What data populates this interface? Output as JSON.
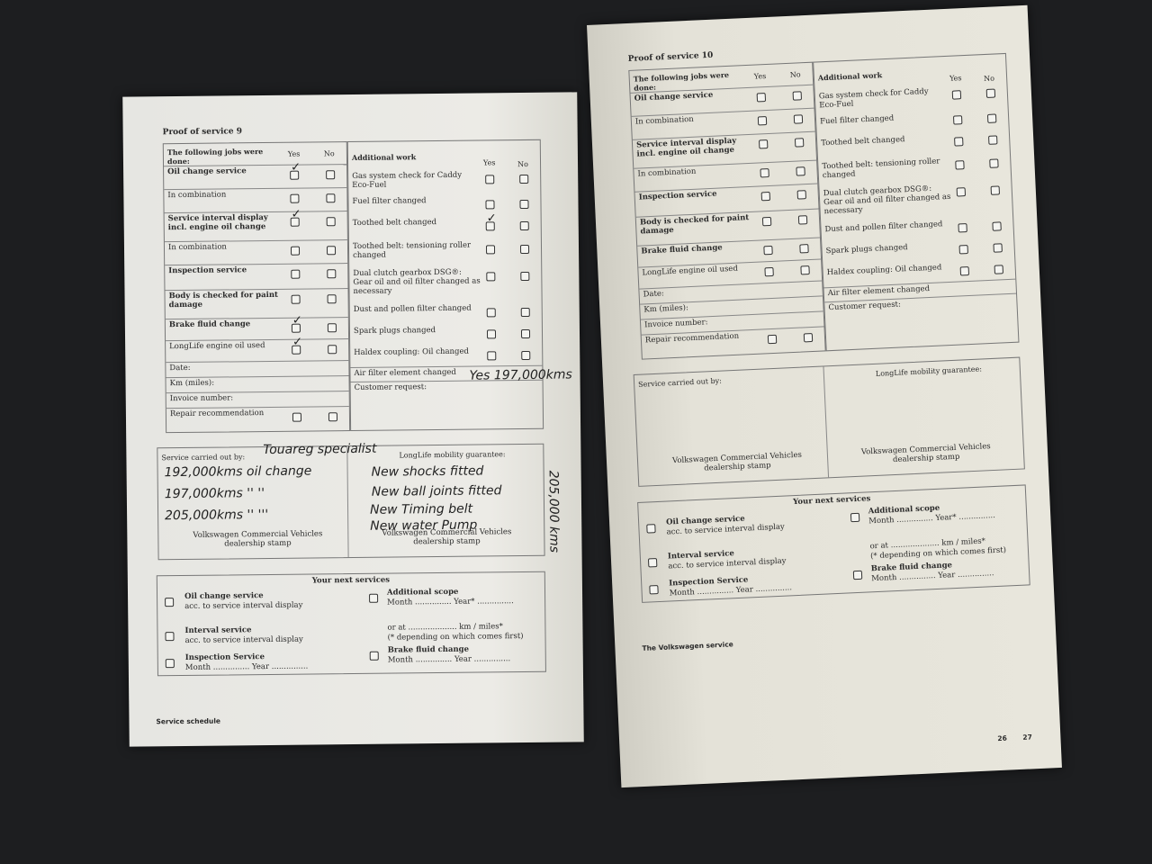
{
  "left": {
    "title": "Proof of service 9",
    "jobs_header": "The following jobs were done:",
    "yes": "Yes",
    "no": "No",
    "jobs": [
      "Oil change service",
      "In combination",
      "Service interval display incl. engine oil change",
      "In combination",
      "Inspection service",
      "Body is checked for paint damage",
      "Brake fluid change",
      "LongLife engine oil used"
    ],
    "jobs_bold": [
      true,
      false,
      true,
      false,
      true,
      true,
      true,
      false
    ],
    "jobs_checked": [
      true,
      false,
      true,
      false,
      false,
      false,
      true,
      true
    ],
    "fields": [
      "Date:",
      "Km (miles):",
      "Invoice number:",
      "Repair recommendation"
    ],
    "additional_header": "Additional work",
    "additional": [
      "Gas system check for Caddy Eco-Fuel",
      "Fuel filter changed",
      "Toothed belt changed",
      "Toothed belt: tensioning roller changed",
      "Dual clutch gearbox DSG®: Gear oil and oil filter changed as necessary",
      "Dust and pollen filter changed",
      "Spark plugs changed",
      "Haldex coupling: Oil changed"
    ],
    "additional_checked": [
      false,
      false,
      true,
      false,
      false,
      false,
      false,
      false
    ],
    "air_filter": "Air filter element changed",
    "customer_request": "Customer request:",
    "service_by": "Service carried out by:",
    "longlife": "LongLife mobility guarantee:",
    "stamp": "Volkswagen Commercial Vehicles dealership stamp",
    "next": {
      "title": "Your next services",
      "oil": "Oil change service",
      "oil_sub": "acc. to service interval display",
      "interval": "Interval service",
      "interval_sub": "acc. to service interval display",
      "inspection": "Inspection Service",
      "inspection_sub": "Month ............... Year ...............",
      "additional": "Additional scope",
      "additional_sub": "Month ............... Year* ...............",
      "or_at": "or at .................... km / miles*",
      "depending": "(* depending on which comes first)",
      "brake": "Brake fluid change",
      "brake_sub": "Month ............... Year ..............."
    },
    "footer": "Service schedule",
    "handwriting": {
      "shop": "Touareg specialist",
      "l1": "192,000kms oil change",
      "l2": "197,000kms  ''    ''",
      "l3": "205,000kms  ''    '''",
      "r1": "New shocks fitted",
      "r2": "New ball joints fitted",
      "r3": "New Timing belt",
      "r4": "New water Pump",
      "side": "205,000 kms",
      "air": "Yes 197,000kms"
    }
  },
  "right": {
    "title": "Proof of service 10",
    "jobs_header": "The following jobs were done:",
    "yes": "Yes",
    "no": "No",
    "jobs": [
      "Oil change service",
      "In combination",
      "Service interval display incl. engine oil change",
      "In combination",
      "Inspection service",
      "Body is checked for paint damage",
      "Brake fluid change",
      "LongLife engine oil used"
    ],
    "jobs_bold": [
      true,
      false,
      true,
      false,
      true,
      true,
      true,
      false
    ],
    "fields": [
      "Date:",
      "Km (miles):",
      "Invoice number:",
      "Repair recommendation"
    ],
    "additional_header": "Additional work",
    "additional": [
      "Gas system check for Caddy Eco-Fuel",
      "Fuel filter changed",
      "Toothed belt changed",
      "Toothed belt: tensioning roller changed",
      "Dual clutch gearbox DSG®: Gear oil and oil filter changed as necessary",
      "Dust and pollen filter changed",
      "Spark plugs changed",
      "Haldex coupling: Oil changed"
    ],
    "air_filter": "Air filter element changed",
    "customer_request": "Customer request:",
    "service_by": "Service carried out by:",
    "longlife": "LongLife mobility guarantee:",
    "stamp": "Volkswagen Commercial Vehicles dealership stamp",
    "next": {
      "title": "Your next services",
      "oil": "Oil change service",
      "oil_sub": "acc. to service interval display",
      "interval": "Interval service",
      "interval_sub": "acc. to service interval display",
      "inspection": "Inspection Service",
      "inspection_sub": "Month ............... Year ...............",
      "additional": "Additional scope",
      "additional_sub": "Month ............... Year* ...............",
      "or_at": "or at .................... km / miles*",
      "depending": "(* depending on which comes first)",
      "brake": "Brake fluid change",
      "brake_sub": "Month ............... Year ..............."
    },
    "footer": "The Volkswagen service",
    "page_numbers": [
      "26",
      "27"
    ]
  }
}
